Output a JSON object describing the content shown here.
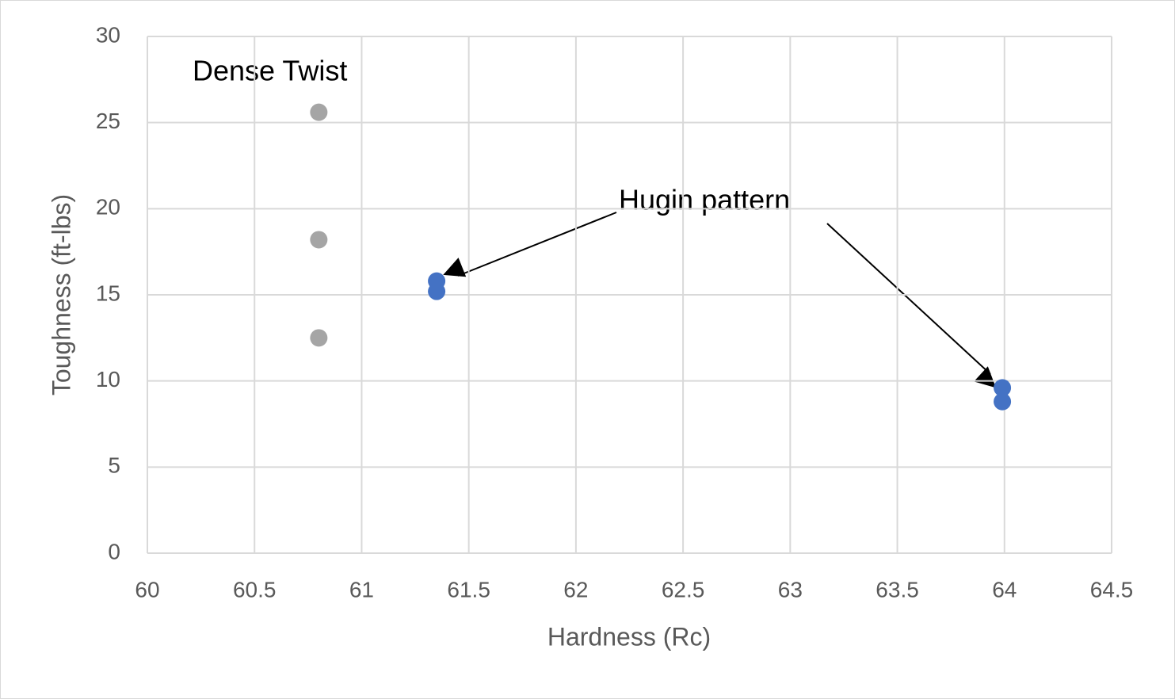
{
  "chart_data": {
    "type": "scatter",
    "xlabel": "Hardness (Rc)",
    "ylabel": "Toughness (ft-lbs)",
    "series": [
      {
        "color": "#a5a5a5",
        "x": [
          60.8,
          60.8,
          60.8
        ],
        "y": [
          25.6,
          18.2,
          12.5
        ]
      },
      {
        "color": "#4472c4",
        "x": [
          61.35,
          61.35,
          63.99,
          63.99
        ],
        "y": [
          15.8,
          15.2,
          9.6,
          8.8
        ]
      }
    ],
    "annotations": [
      "Dense Twist",
      "Hugin pattern"
    ],
    "xlim": [
      60,
      64.5
    ],
    "xticks": [
      60,
      60.5,
      61,
      61.5,
      62,
      62.5,
      63,
      63.5,
      64,
      64.5
    ],
    "ylim": [
      0,
      30
    ],
    "yticks": [
      0,
      5,
      10,
      15,
      20,
      25,
      30
    ],
    "grid": true
  }
}
